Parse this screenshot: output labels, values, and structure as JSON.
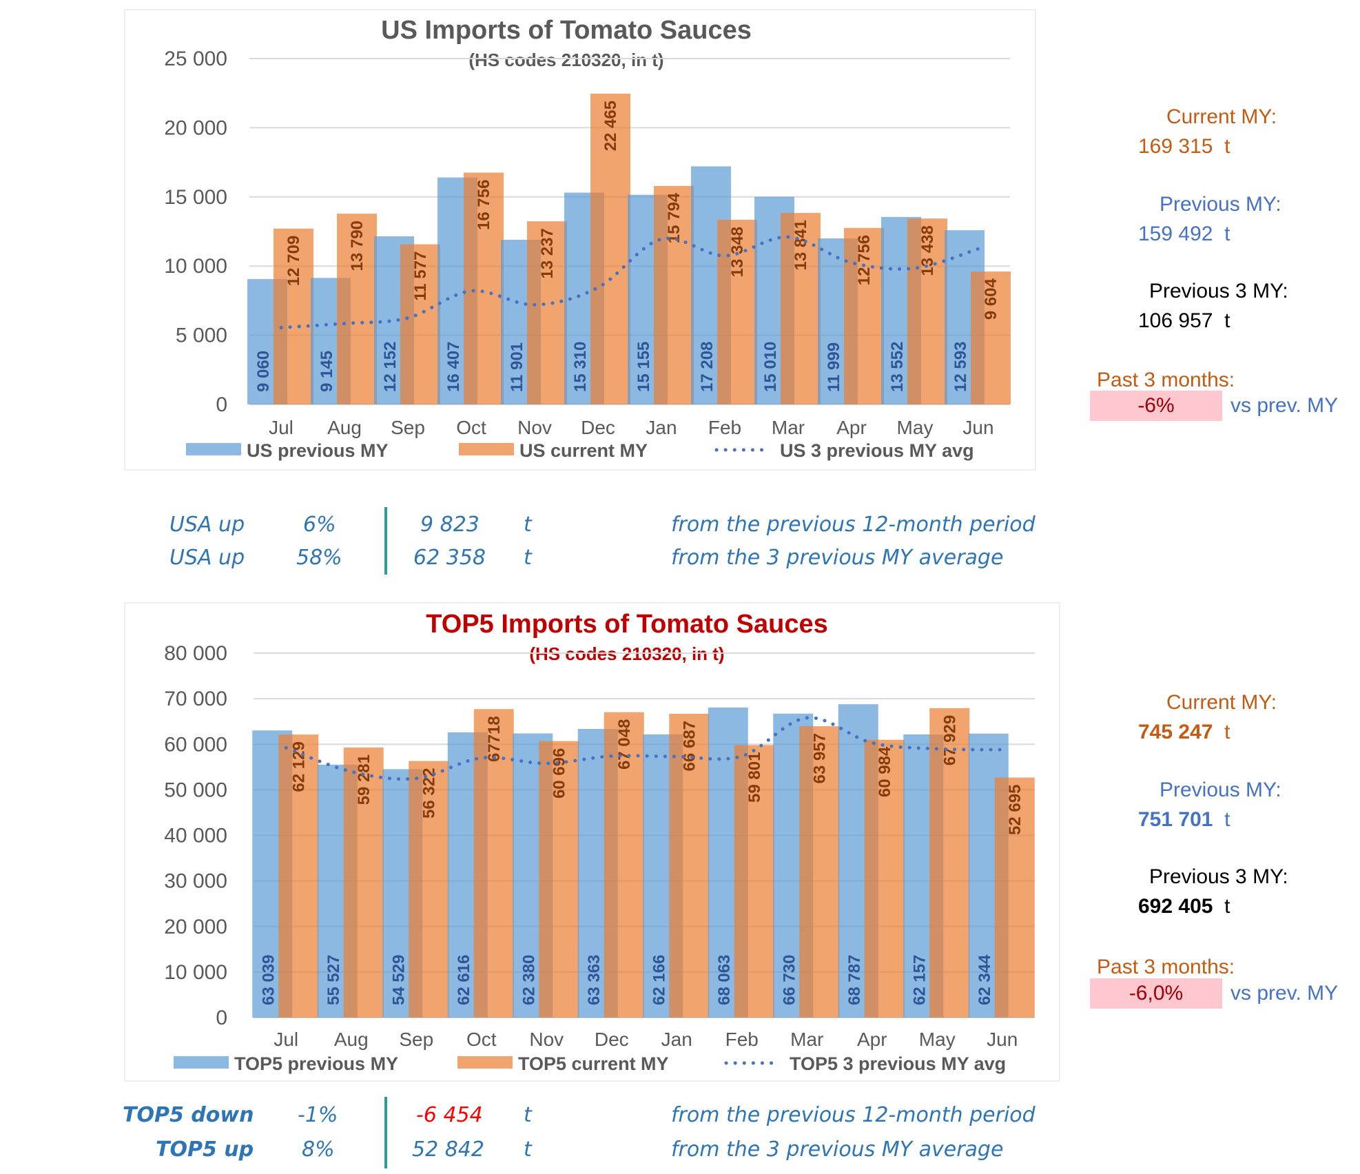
{
  "charts": [
    {
      "id": "us",
      "title": "US Imports of Tomato Sauces",
      "subtitle": "(HS codes 210320, in t)",
      "title_color": "#595959",
      "side": {
        "current_label": "Current MY:",
        "current_value": "169 315",
        "previous_label": "Previous MY:",
        "previous_value": "159 492",
        "prev3_label": "Previous 3 MY:",
        "prev3_value": "106 957",
        "unit": "t",
        "past3_label": "Past 3 months:",
        "past3_value": "-6%",
        "vs_label": "vs prev. MY",
        "values_bold": false
      },
      "summary": [
        {
          "label": "USA up",
          "pct": "6%",
          "amount": "9 823",
          "unit": "t",
          "desc": "from the previous 12-month period",
          "negative": false
        },
        {
          "label": "USA up",
          "pct": "58%",
          "amount": "62 358",
          "unit": "t",
          "desc": "from the 3 previous MY average",
          "negative": false
        }
      ]
    },
    {
      "id": "top5",
      "title": "TOP5 Imports of Tomato Sauces",
      "subtitle": "(HS codes 210320, in t)",
      "title_color": "#c00000",
      "side": {
        "current_label": "Current MY:",
        "current_value": "745 247",
        "previous_label": "Previous MY:",
        "previous_value": "751 701",
        "prev3_label": "Previous 3 MY:",
        "prev3_value": "692 405",
        "unit": "t",
        "past3_label": "Past 3 months:",
        "past3_value": "-6,0%",
        "vs_label": "vs prev. MY",
        "values_bold": true
      },
      "summary": [
        {
          "label": "TOP5 down",
          "pct": "-1%",
          "amount": "-6 454",
          "unit": "t",
          "desc": "from the previous 12-month period",
          "negative": true
        },
        {
          "label": "TOP5 up",
          "pct": "8%",
          "amount": "52 842",
          "unit": "t",
          "desc": "from the 3 previous MY average",
          "negative": false
        }
      ]
    }
  ],
  "colors": {
    "previous": "#5b9bd5",
    "current": "#ed7d31",
    "avg": "#4472c4",
    "prev_label": "#2f5597",
    "cur_label": "#843c0c",
    "axis_text": "#595959",
    "grid": "#d9d9d9"
  },
  "chart_data": [
    {
      "type": "bar",
      "title": "US Imports of Tomato Sauces",
      "subtitle": "(HS codes 210320, in t)",
      "xlabel": "",
      "ylabel": "",
      "ylim": [
        0,
        25000
      ],
      "yticks": [
        0,
        5000,
        10000,
        15000,
        20000,
        25000
      ],
      "ytick_labels": [
        "0",
        "5 000",
        "10 000",
        "15 000",
        "20 000",
        "25 000"
      ],
      "grid": true,
      "legend_position": "bottom",
      "categories": [
        "Jul",
        "Aug",
        "Sep",
        "Oct",
        "Nov",
        "Dec",
        "Jan",
        "Feb",
        "Mar",
        "Apr",
        "May",
        "Jun"
      ],
      "series": [
        {
          "name": "US previous MY",
          "kind": "bar",
          "values": [
            9060,
            9145,
            12152,
            16407,
            11901,
            15310,
            15155,
            17208,
            15010,
            11999,
            13552,
            12593
          ],
          "labels": [
            "9 060",
            "9 145",
            "12 152",
            "16 407",
            "11 901",
            "15 310",
            "15 155",
            "17 208",
            "15 010",
            "11 999",
            "13 552",
            "12 593"
          ]
        },
        {
          "name": "US current MY",
          "kind": "bar",
          "values": [
            12709,
            13790,
            11577,
            16756,
            13237,
            22465,
            15794,
            13348,
            13841,
            12756,
            13438,
            9604
          ],
          "labels": [
            "12 709",
            "13 790",
            "11 577",
            "16 756",
            "13 237",
            "22 465",
            "15 794",
            "13 348",
            "13 841",
            "12 756",
            "13 438",
            "9 604"
          ]
        },
        {
          "name": "US 3 previous MY avg",
          "kind": "line-dotted",
          "values": [
            5550,
            5850,
            6250,
            8200,
            7200,
            8450,
            11950,
            10750,
            12100,
            10250,
            9850,
            11250
          ]
        }
      ]
    },
    {
      "type": "bar",
      "title": "TOP5 Imports of Tomato Sauces",
      "subtitle": "(HS codes 210320, in t)",
      "xlabel": "",
      "ylabel": "",
      "ylim": [
        0,
        80000
      ],
      "yticks": [
        0,
        10000,
        20000,
        30000,
        40000,
        50000,
        60000,
        70000,
        80000
      ],
      "ytick_labels": [
        "0",
        "10 000",
        "20 000",
        "30 000",
        "40 000",
        "50 000",
        "60 000",
        "70 000",
        "80 000"
      ],
      "grid": true,
      "legend_position": "bottom",
      "categories": [
        "Jul",
        "Aug",
        "Sep",
        "Oct",
        "Nov",
        "Dec",
        "Jan",
        "Feb",
        "Mar",
        "Apr",
        "May",
        "Jun"
      ],
      "series": [
        {
          "name": "TOP5 previous MY",
          "kind": "bar",
          "values": [
            63039,
            55527,
            54529,
            62616,
            62380,
            63363,
            62166,
            68063,
            66730,
            68787,
            62157,
            62344
          ],
          "labels": [
            "63 039",
            "55 527",
            "54 529",
            "62 616",
            "62 380",
            "63 363",
            "62 166",
            "68 063",
            "66 730",
            "68 787",
            "62 157",
            "62 344"
          ]
        },
        {
          "name": "TOP5 current MY",
          "kind": "bar",
          "values": [
            62129,
            59281,
            56322,
            67718,
            60696,
            67048,
            66687,
            59801,
            63957,
            60984,
            67929,
            52695
          ],
          "labels": [
            "62 129",
            "59 281",
            "56 322",
            "67718",
            "60 696",
            "67 048",
            "66 687",
            "59 801",
            "63 957",
            "60 984",
            "67 929",
            "52 695"
          ]
        },
        {
          "name": "TOP5 3 previous MY avg",
          "kind": "line-dotted",
          "values": [
            59200,
            54000,
            52500,
            57000,
            55800,
            57400,
            57300,
            57400,
            65800,
            60300,
            59000,
            58800
          ]
        }
      ]
    }
  ]
}
